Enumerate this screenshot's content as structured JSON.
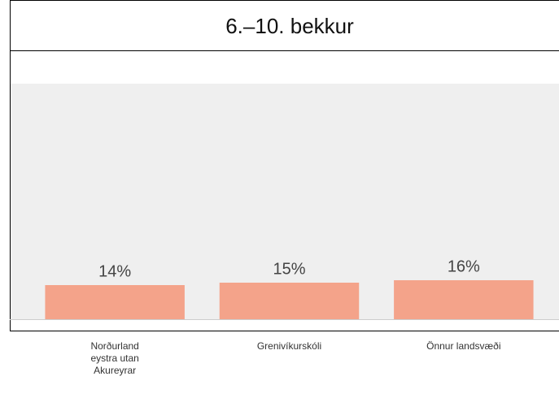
{
  "chart_data": {
    "type": "bar",
    "title": "6.–10. bekkur",
    "categories": [
      "Norðurland eystra utan Akureyrar",
      "Grenivíkurskóli",
      "Önnur landsvæði"
    ],
    "values": [
      14,
      15,
      16
    ],
    "value_labels": [
      "14%",
      "15%",
      "16%"
    ],
    "color": "#f4a38a",
    "ylim": [
      0,
      100
    ]
  }
}
